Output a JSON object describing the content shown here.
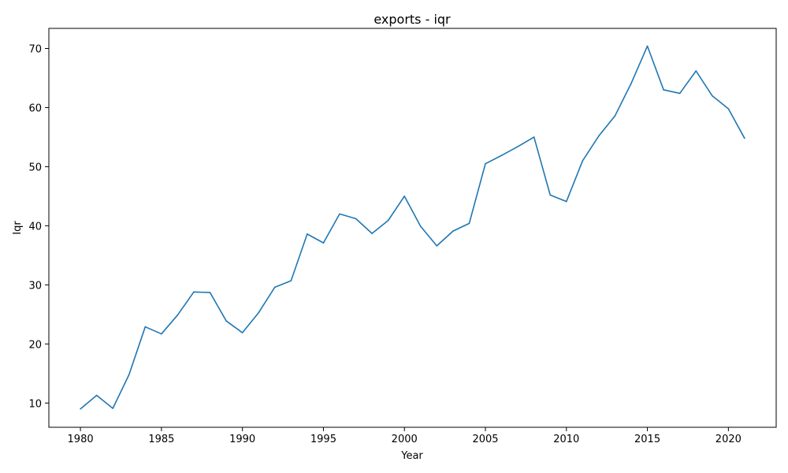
{
  "chart_data": {
    "type": "line",
    "title": "exports - iqr",
    "xlabel": "Year",
    "ylabel": "Iqr",
    "xlim": [
      1978.05,
      2022.95
    ],
    "ylim": [
      5.9,
      73.4
    ],
    "xticks": [
      1980,
      1985,
      1990,
      1995,
      2000,
      2005,
      2010,
      2015,
      2020
    ],
    "yticks": [
      10,
      20,
      30,
      40,
      50,
      60,
      70
    ],
    "grid": false,
    "line_color": "#1f77b4",
    "series": [
      {
        "x": [
          1980,
          1981,
          1982,
          1983,
          1984,
          1985,
          1986,
          1987,
          1988,
          1989,
          1990,
          1991,
          1992,
          1993,
          1994,
          1995,
          1996,
          1997,
          1998,
          1999,
          2000,
          2001,
          2002,
          2003,
          2004,
          2005,
          2006,
          2007,
          2008,
          2009,
          2010,
          2011,
          2012,
          2013,
          2014,
          2015,
          2016,
          2017,
          2018,
          2019,
          2020,
          2021
        ],
        "values": [
          9.0,
          11.3,
          9.1,
          14.8,
          22.9,
          21.7,
          24.9,
          28.8,
          28.7,
          23.9,
          21.9,
          25.3,
          29.6,
          30.7,
          38.6,
          37.1,
          42.0,
          41.2,
          38.7,
          40.9,
          45.0,
          39.9,
          36.6,
          39.1,
          40.4,
          50.5,
          51.9,
          53.4,
          55.0,
          45.2,
          44.1,
          51.0,
          55.2,
          58.6,
          64.1,
          70.4,
          63.0,
          62.4,
          66.2,
          62.0,
          59.8,
          54.8
        ]
      }
    ]
  }
}
